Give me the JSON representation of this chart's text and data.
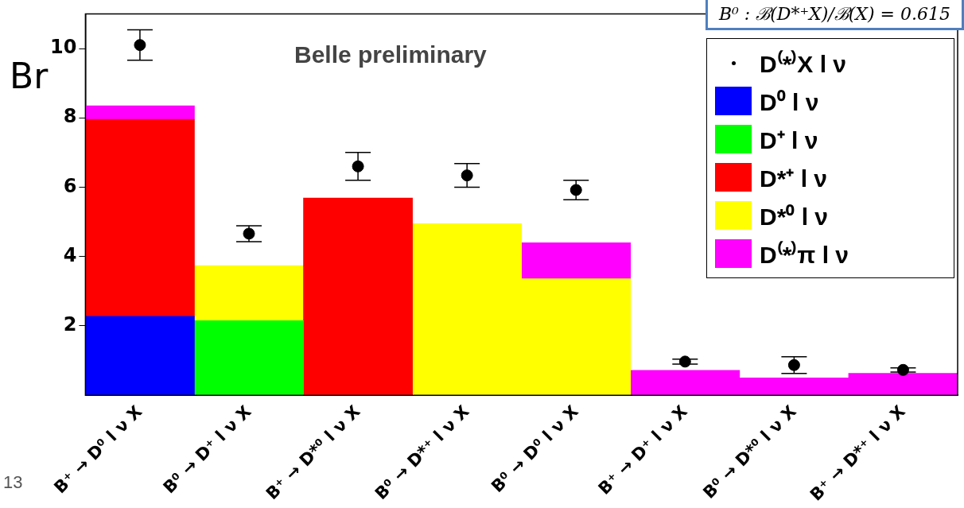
{
  "chart_data": {
    "type": "bar",
    "stacked": true,
    "ylabel": "Br",
    "categories": [
      "B⁺ → D⁰ l ν X",
      "B⁰ → D⁺ l ν X",
      "B⁺ → D*⁰ l ν X",
      "B⁰ → D*⁺ l ν X",
      "B⁰ → D⁰ l ν X",
      "B⁺ → D⁺ l ν X",
      "B⁰ → D*⁰ l ν X",
      "B⁺ → D*⁺ l ν X"
    ],
    "series": [
      {
        "name": "D⁰ l ν",
        "color": "#0000ff",
        "values": [
          2.28,
          null,
          null,
          null,
          null,
          null,
          null,
          null
        ]
      },
      {
        "name": "D⁺ l ν",
        "color": "#00ff00",
        "values": [
          null,
          2.15,
          null,
          null,
          null,
          null,
          null,
          null
        ]
      },
      {
        "name": "D*⁺ l ν",
        "color": "#ff0000",
        "values": [
          5.68,
          null,
          5.69,
          null,
          null,
          null,
          null,
          null
        ]
      },
      {
        "name": "D*⁰ l ν",
        "color": "#ffff00",
        "values": [
          null,
          1.59,
          null,
          4.95,
          3.36,
          null,
          null,
          null
        ]
      },
      {
        "name": "D⁽*⁾π l ν",
        "color": "#ff00ff",
        "values": [
          0.39,
          null,
          null,
          null,
          1.04,
          0.72,
          0.5,
          0.63
        ]
      },
      {
        "name": "D⁽*⁾X l ν",
        "type": "scatter",
        "color": "#000000",
        "x": [
          "B⁺ → D⁰ l ν X",
          "B⁰ → D⁺ l ν X",
          "B⁺ → D*⁰ l ν X",
          "B⁰ → D*⁺ l ν X",
          "B⁰ → D⁰ l ν X",
          "B⁺ → D⁺ l ν X",
          "B⁰ → D*⁰ l ν X",
          "B⁺ → D*⁺ l ν X"
        ],
        "values": [
          10.1,
          4.66,
          6.6,
          6.34,
          5.92,
          0.97,
          0.87,
          0.73
        ],
        "errors": [
          0.44,
          0.23,
          0.4,
          0.34,
          0.28,
          0.07,
          0.24,
          0.06
        ]
      }
    ],
    "ylim": [
      0,
      11
    ],
    "yticks": [
      2,
      4,
      6,
      8,
      10
    ],
    "grid": false,
    "legend": "top right",
    "marker": "circle",
    "annotations": [
      "Belle preliminary",
      "B⁰ :  ℬ(D*⁺X)/ℬ(X)  = 0.615",
      "13"
    ]
  }
}
